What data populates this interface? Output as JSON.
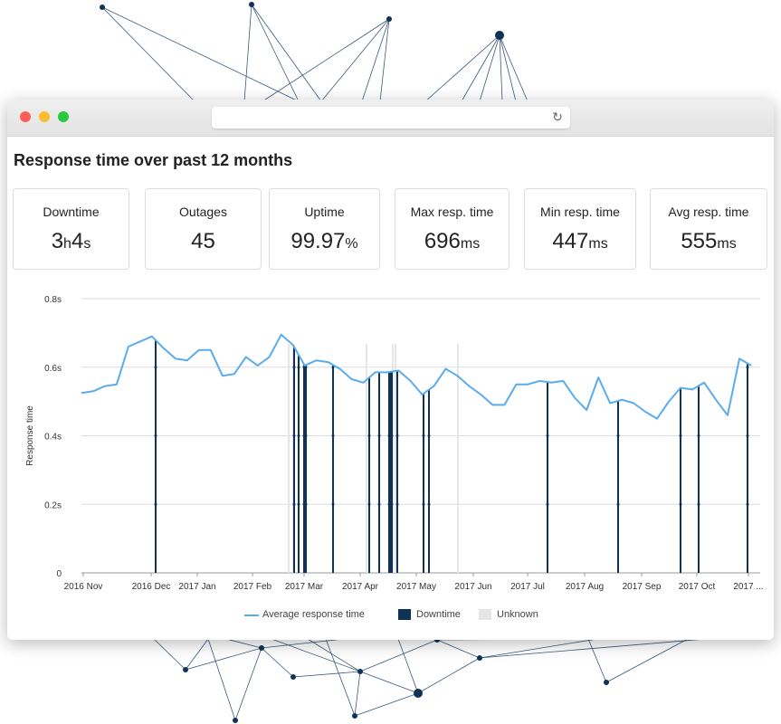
{
  "window": {
    "url_text": ""
  },
  "page": {
    "title": "Response time over past 12 months"
  },
  "stats": [
    {
      "label": "Downtime",
      "parts": [
        [
          "3",
          ""
        ],
        [
          "h",
          "u"
        ],
        [
          "4",
          ""
        ],
        [
          "s",
          "u"
        ]
      ]
    },
    {
      "label": "Outages",
      "parts": [
        [
          "45",
          ""
        ]
      ]
    },
    {
      "label": "Uptime",
      "parts": [
        [
          "99.97",
          ""
        ],
        [
          "%",
          "u"
        ]
      ]
    },
    {
      "label": "Max resp. time",
      "parts": [
        [
          "696",
          ""
        ],
        [
          "ms",
          "u"
        ]
      ]
    },
    {
      "label": "Min resp. time",
      "parts": [
        [
          "447",
          ""
        ],
        [
          "ms",
          "u"
        ]
      ]
    },
    {
      "label": "Avg resp. time",
      "parts": [
        [
          "555",
          ""
        ],
        [
          "ms",
          "u"
        ]
      ]
    }
  ],
  "legend": {
    "avg": "Average response time",
    "downtime": "Downtime",
    "unknown": "Unknown"
  },
  "colors": {
    "line": "#5aacec",
    "downtime": "#0e3357",
    "unknown": "#e6e6e6",
    "grid": "#dddddd"
  },
  "chart_data": {
    "type": "line",
    "ylabel": "Response time",
    "ylim": [
      0,
      0.8
    ],
    "y_ticks": [
      "0",
      "0.2s",
      "0.4s",
      "0.6s",
      "0.8s"
    ],
    "x_ticks": [
      "2016 Nov",
      "2016 Dec",
      "2017 Jan",
      "2017 Feb",
      "2017 Mar",
      "2017 Apr",
      "2017 May",
      "2017 Jun",
      "2017 Jul",
      "2017 Aug",
      "2017 Sep",
      "2017 Oct",
      "2017 ..."
    ],
    "series": [
      {
        "name": "Average response time",
        "values": [
          0.525,
          0.53,
          0.545,
          0.55,
          0.66,
          0.675,
          0.69,
          0.655,
          0.625,
          0.62,
          0.65,
          0.65,
          0.575,
          0.58,
          0.63,
          0.605,
          0.63,
          0.695,
          0.665,
          0.605,
          0.62,
          0.615,
          0.595,
          0.565,
          0.555,
          0.585,
          0.585,
          0.59,
          0.56,
          0.52,
          0.545,
          0.595,
          0.575,
          0.545,
          0.52,
          0.49,
          0.49,
          0.55,
          0.55,
          0.56,
          0.555,
          0.56,
          0.51,
          0.475,
          0.57,
          0.495,
          0.505,
          0.495,
          0.47,
          0.45,
          0.5,
          0.54,
          0.535,
          0.555,
          0.505,
          0.46,
          0.625,
          0.605
        ]
      }
    ],
    "downtime_events": 19,
    "unknown_periods": 6
  }
}
